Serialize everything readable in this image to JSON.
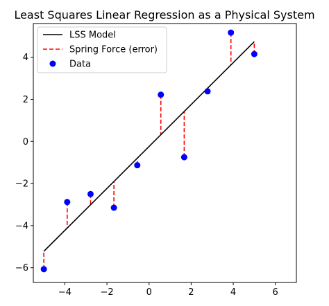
{
  "chart_data": {
    "type": "scatter",
    "title": "Least Squares Linear Regression as a Physical System",
    "xlabel": "",
    "ylabel": "",
    "xlim": [
      -5.5,
      7.0
    ],
    "ylim": [
      -6.7,
      5.6
    ],
    "xticks": [
      -4,
      -2,
      0,
      2,
      4,
      6
    ],
    "yticks": [
      -6,
      -4,
      -2,
      0,
      2,
      4
    ],
    "xtick_labels": [
      "−4",
      "−2",
      "0",
      "2",
      "4",
      "6"
    ],
    "ytick_labels": [
      "−6",
      "−4",
      "−2",
      "0",
      "2",
      "4"
    ],
    "grid": false,
    "legend_position": "top-left",
    "legend": [
      {
        "label": "LSS Model",
        "kind": "line",
        "color": "#000000"
      },
      {
        "label": "Spring Force (error)",
        "kind": "dashed",
        "color": "#ff0000"
      },
      {
        "label": "Data",
        "kind": "marker",
        "color": "#0000ff"
      }
    ],
    "series": [
      {
        "name": "Data",
        "kind": "scatter",
        "color": "#0000ff",
        "x": [
          -5.0,
          -3.89,
          -2.78,
          -1.67,
          -0.56,
          0.56,
          1.67,
          2.78,
          3.89,
          5.0
        ],
        "y": [
          -6.07,
          -2.88,
          -2.5,
          -3.15,
          -1.13,
          2.22,
          -0.75,
          2.38,
          5.17,
          4.15
        ]
      },
      {
        "name": "LSS Model",
        "kind": "line",
        "color": "#000000",
        "x": [
          -5.0,
          5.0
        ],
        "y": [
          -5.22,
          4.74
        ]
      }
    ],
    "error_segments_color": "#ff0000"
  }
}
